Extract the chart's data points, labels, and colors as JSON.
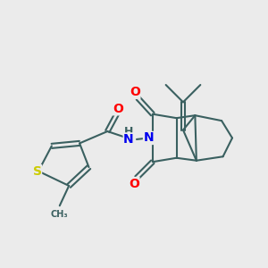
{
  "bg_color": "#ebebeb",
  "bond_color": "#3a6060",
  "atom_colors": {
    "O": "#ff0000",
    "N": "#0000ee",
    "S": "#cccc00",
    "H": "#3a6060",
    "C": "#3a6060"
  },
  "line_width": 1.5,
  "font_size": 10,
  "figsize": [
    3.0,
    3.0
  ],
  "dpi": 100
}
